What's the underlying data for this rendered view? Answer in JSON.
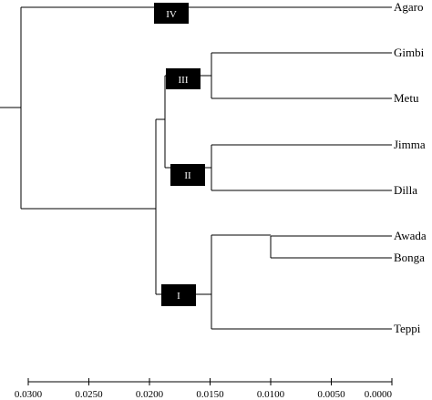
{
  "dendrogram": {
    "leaves": [
      "Agaro",
      "Gimbi",
      "Metu",
      "Jimma",
      "Dilla",
      "Awada",
      "Bonga",
      "Teppi"
    ],
    "clusters": [
      {
        "label": "IV",
        "members": [
          "Agaro"
        ]
      },
      {
        "label": "III",
        "members": [
          "Gimbi",
          "Metu"
        ]
      },
      {
        "label": "II",
        "members": [
          "Jimma",
          "Dilla"
        ]
      },
      {
        "label": "I",
        "members": [
          "Awada",
          "Bonga",
          "Teppi"
        ]
      }
    ],
    "merge_heights": {
      "Gimbi+Metu": 0.015,
      "Jimma+Dilla": 0.015,
      "Awada+Bonga": 0.01,
      "Awada+Bonga+Teppi": 0.015,
      "III+II": 0.019,
      "III+II+I": 0.0197,
      "root": 0.0302
    },
    "axis": {
      "ticks": [
        "0.0300",
        "0.0250",
        "0.0200",
        "0.0150",
        "0.0100",
        "0.0050",
        "0.0000"
      ],
      "range": [
        0.0305,
        0.0
      ]
    }
  }
}
